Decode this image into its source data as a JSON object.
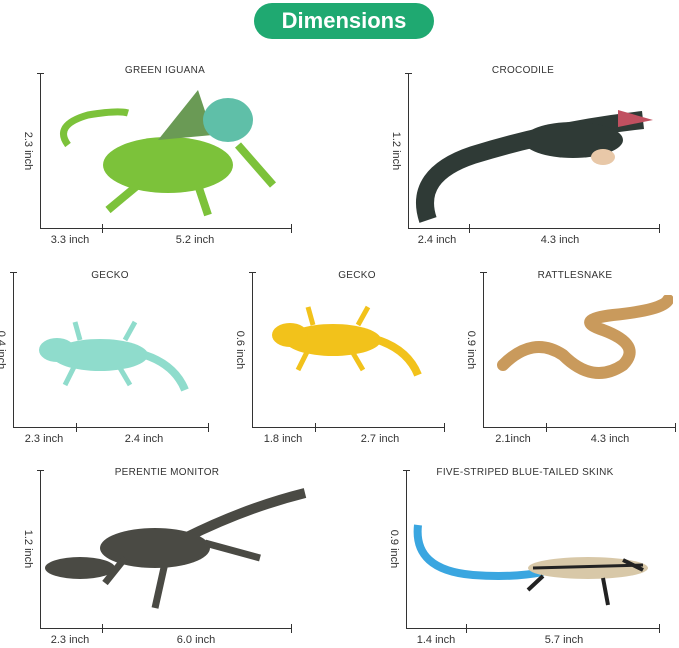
{
  "header": {
    "title": "Dimensions",
    "accent_color": "#1fa971"
  },
  "items": [
    {
      "name": "GREEN IGUANA",
      "height": "2.3 inch",
      "width": "3.3 inch",
      "length": "5.2 inch",
      "color": "#7cc23a"
    },
    {
      "name": "CROCODILE",
      "height": "1.2 inch",
      "width": "2.4 inch",
      "length": "4.3 inch",
      "color": "#2f3a36"
    },
    {
      "name": "GECKO",
      "height": "0.4 inch",
      "width": "2.3 inch",
      "length": "2.4 inch",
      "color": "#8fdccc"
    },
    {
      "name": "GECKO",
      "height": "0.6 inch",
      "width": "1.8 inch",
      "length": "2.7 inch",
      "color": "#f2c21b"
    },
    {
      "name": "RATTLESNAKE",
      "height": "0.9 inch",
      "width": "2.1inch",
      "length": "4.3 inch",
      "color": "#c99a5c"
    },
    {
      "name": "PERENTIE MONITOR",
      "height": "1.2 inch",
      "width": "2.3 inch",
      "length": "6.0 inch",
      "color": "#4a4a44"
    },
    {
      "name": "FIVE-STRIPED BLUE-TAILED SKINK",
      "height": "0.9 inch",
      "width": "1.4 inch",
      "length": "5.7 inch",
      "color": "#3aa6e0"
    }
  ]
}
